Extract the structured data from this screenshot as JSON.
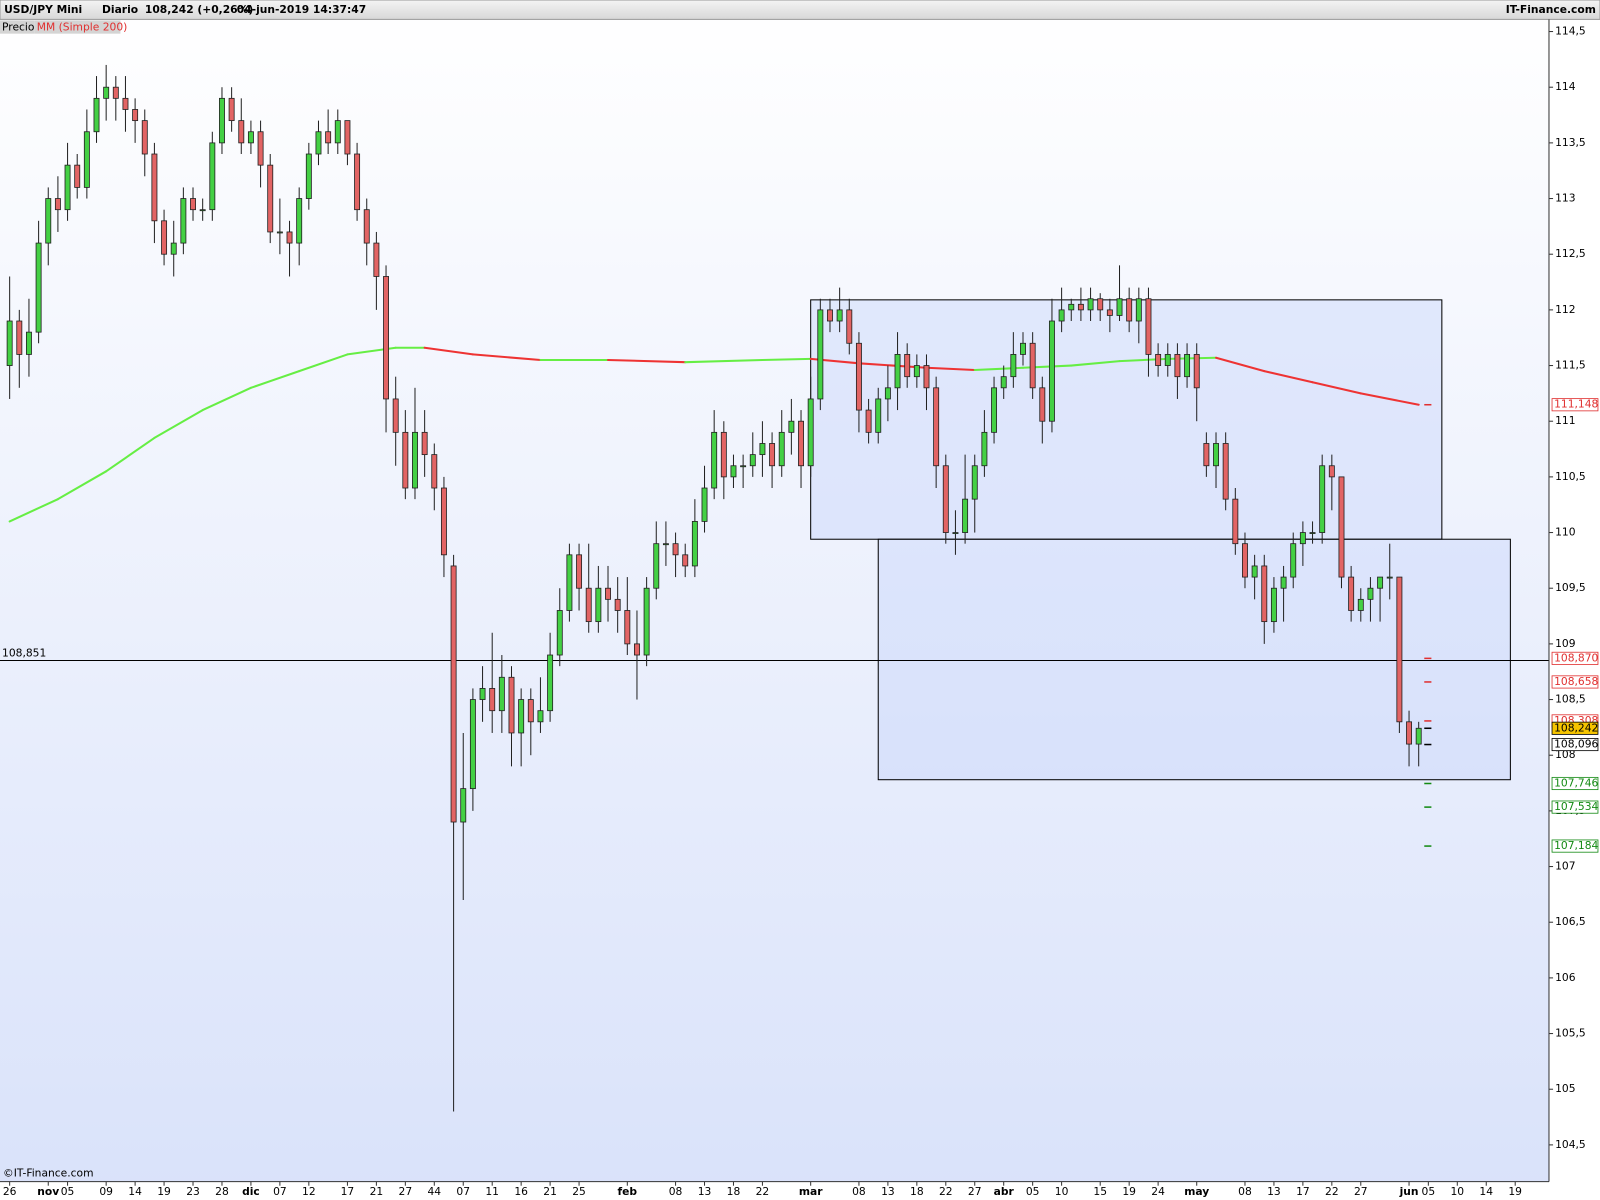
{
  "header": {
    "instrument": "USD/JPY Mini",
    "period": "Diario",
    "last": "108,242 (+0,26%)",
    "datetime": "04-jun-2019 14:37:47",
    "brand": "IT-Finance.com"
  },
  "legend": {
    "price": "Precio",
    "ma": "MM (Simple 200)"
  },
  "footer": "©IT-Finance.com",
  "chart_data": {
    "type": "candlestick",
    "up_color": "#44d044",
    "down_color": "#e26464",
    "ma_up_color": "#66ee44",
    "ma_down_color": "#ee3333",
    "xlim": [
      -1,
      159.5
    ],
    "ylim": [
      104.17,
      114.6
    ],
    "xticks": [
      {
        "value": 0,
        "label": "26"
      },
      {
        "value": 4,
        "label": "nov"
      },
      {
        "value": 6,
        "label": "05"
      },
      {
        "value": 10,
        "label": "09"
      },
      {
        "value": 13,
        "label": "14"
      },
      {
        "value": 16,
        "label": "19"
      },
      {
        "value": 19,
        "label": "23"
      },
      {
        "value": 22,
        "label": "28"
      },
      {
        "value": 25,
        "label": "dic"
      },
      {
        "value": 28,
        "label": "07"
      },
      {
        "value": 31,
        "label": "12"
      },
      {
        "value": 35,
        "label": "17"
      },
      {
        "value": 38,
        "label": "21"
      },
      {
        "value": 41,
        "label": "27"
      },
      44,
      {
        "value": 47,
        "label": "07"
      },
      {
        "value": 50,
        "label": "11"
      },
      {
        "value": 53,
        "label": "16"
      },
      {
        "value": 56,
        "label": "21"
      },
      {
        "value": 59,
        "label": "25"
      },
      {
        "value": 64,
        "label": "feb"
      },
      {
        "value": 69,
        "label": "08"
      },
      {
        "value": 72,
        "label": "13"
      },
      {
        "value": 75,
        "label": "18"
      },
      {
        "value": 78,
        "label": "22"
      },
      {
        "value": 83,
        "label": "mar"
      },
      {
        "value": 88,
        "label": "08"
      },
      {
        "value": 91,
        "label": "13"
      },
      {
        "value": 94,
        "label": "18"
      },
      {
        "value": 97,
        "label": "22"
      },
      {
        "value": 100,
        "label": "27"
      },
      {
        "value": 103,
        "label": "abr"
      },
      {
        "value": 106,
        "label": "05"
      },
      {
        "value": 109,
        "label": "10"
      },
      {
        "value": 113,
        "label": "15"
      },
      {
        "value": 116,
        "label": "19"
      },
      {
        "value": 119,
        "label": "24"
      },
      {
        "value": 123,
        "label": "may"
      },
      {
        "value": 128,
        "label": "08"
      },
      {
        "value": 131,
        "label": "13"
      },
      {
        "value": 134,
        "label": "17"
      },
      {
        "value": 137,
        "label": "22"
      },
      {
        "value": 140,
        "label": "27"
      },
      {
        "value": 145,
        "label": "jun"
      },
      {
        "value": 147,
        "label": "05"
      },
      {
        "value": 150,
        "label": "10"
      },
      {
        "value": 153,
        "label": "14"
      },
      {
        "value": 156,
        "label": "19"
      }
    ],
    "yticks": [
      {
        "value": 104.5,
        "label": "104,5"
      },
      105,
      {
        "value": 105.5,
        "label": "105,5"
      },
      106,
      {
        "value": 106.5,
        "label": "106,5"
      },
      107,
      {
        "value": 107.5,
        "label": "107,5"
      },
      108,
      {
        "value": 108.5,
        "label": "108,5"
      },
      109,
      {
        "value": 109.5,
        "label": "109,5"
      },
      110,
      {
        "value": 110.5,
        "label": "110,5"
      },
      111,
      {
        "value": 111.5,
        "label": "111,5"
      },
      112,
      {
        "value": 112.5,
        "label": "112,5"
      },
      113,
      {
        "value": 113.5,
        "label": "113,5"
      },
      114,
      {
        "value": 114.5,
        "label": "114,5"
      }
    ],
    "ohlc": [
      [
        111.5,
        112.3,
        111.2,
        111.9
      ],
      [
        111.9,
        112.0,
        111.3,
        111.6
      ],
      [
        111.6,
        112.1,
        111.4,
        111.8
      ],
      [
        111.8,
        112.8,
        111.7,
        112.6
      ],
      [
        112.6,
        113.1,
        112.4,
        113.0
      ],
      [
        113.0,
        113.2,
        112.7,
        112.9
      ],
      [
        112.9,
        113.5,
        112.8,
        113.3
      ],
      [
        113.3,
        113.4,
        113.0,
        113.1
      ],
      [
        113.1,
        113.8,
        113.0,
        113.6
      ],
      [
        113.6,
        114.1,
        113.5,
        113.9
      ],
      [
        113.9,
        114.2,
        113.7,
        114.0
      ],
      [
        114.0,
        114.1,
        113.7,
        113.9
      ],
      [
        113.9,
        114.1,
        113.6,
        113.8
      ],
      [
        113.8,
        113.9,
        113.5,
        113.7
      ],
      [
        113.7,
        113.8,
        113.2,
        113.4
      ],
      [
        113.4,
        113.5,
        112.6,
        112.8
      ],
      [
        112.8,
        112.9,
        112.4,
        112.5
      ],
      [
        112.5,
        112.8,
        112.3,
        112.6
      ],
      [
        112.6,
        113.1,
        112.5,
        113.0
      ],
      [
        113.0,
        113.1,
        112.8,
        112.9
      ],
      [
        112.9,
        113.0,
        112.8,
        112.9
      ],
      [
        112.9,
        113.6,
        112.8,
        113.5
      ],
      [
        113.5,
        114.0,
        113.4,
        113.9
      ],
      [
        113.9,
        114.0,
        113.6,
        113.7
      ],
      [
        113.7,
        113.9,
        113.4,
        113.5
      ],
      [
        113.5,
        113.7,
        113.4,
        113.6
      ],
      [
        113.6,
        113.7,
        113.1,
        113.3
      ],
      [
        113.3,
        113.4,
        112.6,
        112.7
      ],
      [
        112.7,
        113.0,
        112.5,
        112.7
      ],
      [
        112.7,
        112.8,
        112.3,
        112.6
      ],
      [
        112.6,
        113.1,
        112.4,
        113.0
      ],
      [
        113.0,
        113.5,
        112.9,
        113.4
      ],
      [
        113.4,
        113.7,
        113.3,
        113.6
      ],
      [
        113.6,
        113.8,
        113.4,
        113.5
      ],
      [
        113.5,
        113.8,
        113.4,
        113.7
      ],
      [
        113.7,
        113.7,
        113.3,
        113.4
      ],
      [
        113.4,
        113.5,
        112.8,
        112.9
      ],
      [
        112.9,
        113.0,
        112.4,
        112.6
      ],
      [
        112.6,
        112.7,
        112.0,
        112.3
      ],
      [
        112.3,
        112.4,
        110.9,
        111.2
      ],
      [
        111.2,
        111.4,
        110.6,
        110.9
      ],
      [
        110.9,
        111.1,
        110.3,
        110.4
      ],
      [
        110.4,
        111.3,
        110.3,
        110.9
      ],
      [
        110.9,
        111.1,
        110.5,
        110.7
      ],
      [
        110.7,
        110.8,
        110.2,
        110.4
      ],
      [
        110.4,
        110.5,
        109.6,
        109.8
      ],
      [
        109.7,
        109.8,
        104.8,
        107.4
      ],
      [
        107.4,
        108.2,
        106.7,
        107.7
      ],
      [
        107.7,
        108.6,
        107.5,
        108.5
      ],
      [
        108.5,
        108.8,
        108.3,
        108.6
      ],
      [
        108.6,
        109.1,
        108.2,
        108.4
      ],
      [
        108.4,
        108.9,
        108.2,
        108.7
      ],
      [
        108.7,
        108.8,
        107.9,
        108.2
      ],
      [
        108.2,
        108.6,
        107.9,
        108.5
      ],
      [
        108.5,
        108.6,
        108.0,
        108.3
      ],
      [
        108.3,
        108.7,
        108.2,
        108.4
      ],
      [
        108.4,
        109.1,
        108.3,
        108.9
      ],
      [
        108.9,
        109.5,
        108.8,
        109.3
      ],
      [
        109.3,
        109.9,
        109.2,
        109.8
      ],
      [
        109.8,
        109.9,
        109.3,
        109.5
      ],
      [
        109.5,
        109.9,
        109.1,
        109.2
      ],
      [
        109.2,
        109.7,
        109.1,
        109.5
      ],
      [
        109.5,
        109.7,
        109.2,
        109.4
      ],
      [
        109.4,
        109.6,
        109.1,
        109.3
      ],
      [
        109.3,
        109.6,
        108.9,
        109.0
      ],
      [
        109.0,
        109.3,
        108.5,
        108.9
      ],
      [
        108.9,
        109.6,
        108.8,
        109.5
      ],
      [
        109.5,
        110.1,
        109.4,
        109.9
      ],
      [
        109.9,
        110.1,
        109.7,
        109.9
      ],
      [
        109.9,
        110.0,
        109.6,
        109.8
      ],
      [
        109.8,
        109.9,
        109.6,
        109.7
      ],
      [
        109.7,
        110.3,
        109.6,
        110.1
      ],
      [
        110.1,
        110.6,
        110.0,
        110.4
      ],
      [
        110.4,
        111.1,
        110.3,
        110.9
      ],
      [
        110.9,
        111.0,
        110.3,
        110.5
      ],
      [
        110.5,
        110.7,
        110.4,
        110.6
      ],
      [
        110.6,
        110.7,
        110.4,
        110.6
      ],
      [
        110.6,
        110.9,
        110.5,
        110.7
      ],
      [
        110.7,
        111.0,
        110.5,
        110.8
      ],
      [
        110.8,
        110.9,
        110.4,
        110.6
      ],
      [
        110.6,
        111.1,
        110.5,
        110.9
      ],
      [
        110.9,
        111.2,
        110.7,
        111.0
      ],
      [
        111.0,
        111.1,
        110.4,
        110.6
      ],
      [
        110.6,
        111.4,
        110.5,
        111.2
      ],
      [
        111.2,
        112.1,
        111.1,
        112.0
      ],
      [
        112.0,
        112.1,
        111.8,
        111.9
      ],
      [
        111.9,
        112.2,
        111.8,
        112.0
      ],
      [
        112.0,
        112.1,
        111.6,
        111.7
      ],
      [
        111.7,
        111.8,
        110.9,
        111.1
      ],
      [
        111.1,
        111.2,
        110.8,
        110.9
      ],
      [
        110.9,
        111.3,
        110.8,
        111.2
      ],
      [
        111.2,
        111.5,
        111.0,
        111.3
      ],
      [
        111.3,
        111.8,
        111.1,
        111.6
      ],
      [
        111.6,
        111.7,
        111.3,
        111.4
      ],
      [
        111.4,
        111.6,
        111.3,
        111.5
      ],
      [
        111.5,
        111.6,
        111.1,
        111.3
      ],
      [
        111.3,
        111.4,
        110.4,
        110.6
      ],
      [
        110.6,
        110.7,
        109.9,
        110.0
      ],
      [
        110.0,
        110.2,
        109.8,
        110.0
      ],
      [
        110.0,
        110.7,
        109.9,
        110.3
      ],
      [
        110.3,
        110.7,
        110.0,
        110.6
      ],
      [
        110.6,
        111.1,
        110.5,
        110.9
      ],
      [
        110.9,
        111.4,
        110.8,
        111.3
      ],
      [
        111.3,
        111.5,
        111.2,
        111.4
      ],
      [
        111.4,
        111.8,
        111.3,
        111.6
      ],
      [
        111.6,
        111.8,
        111.5,
        111.7
      ],
      [
        111.7,
        111.8,
        111.2,
        111.3
      ],
      [
        111.3,
        111.4,
        110.8,
        111.0
      ],
      [
        111.0,
        112.1,
        110.9,
        111.9
      ],
      [
        111.9,
        112.2,
        111.8,
        112.0
      ],
      [
        112.0,
        112.1,
        111.9,
        112.05
      ],
      [
        112.05,
        112.2,
        111.9,
        112.0
      ],
      [
        112.0,
        112.2,
        111.9,
        112.1
      ],
      [
        112.1,
        112.15,
        111.9,
        112.0
      ],
      [
        112.0,
        112.1,
        111.8,
        111.95
      ],
      [
        111.95,
        112.4,
        111.9,
        112.1
      ],
      [
        112.1,
        112.2,
        111.8,
        111.9
      ],
      [
        111.9,
        112.2,
        111.7,
        112.1
      ],
      [
        112.1,
        112.2,
        111.4,
        111.6
      ],
      [
        111.6,
        111.7,
        111.4,
        111.5
      ],
      [
        111.5,
        111.7,
        111.4,
        111.6
      ],
      [
        111.6,
        111.7,
        111.2,
        111.4
      ],
      [
        111.4,
        111.7,
        111.3,
        111.6
      ],
      [
        111.6,
        111.7,
        111.0,
        111.3
      ],
      [
        110.8,
        110.9,
        110.5,
        110.6
      ],
      [
        110.6,
        110.9,
        110.4,
        110.8
      ],
      [
        110.8,
        110.9,
        110.2,
        110.3
      ],
      [
        110.3,
        110.4,
        109.8,
        109.9
      ],
      [
        109.9,
        110.0,
        109.5,
        109.6
      ],
      [
        109.6,
        109.8,
        109.4,
        109.7
      ],
      [
        109.7,
        109.8,
        109.0,
        109.2
      ],
      [
        109.2,
        109.6,
        109.1,
        109.5
      ],
      [
        109.5,
        109.7,
        109.2,
        109.6
      ],
      [
        109.6,
        110.0,
        109.5,
        109.9
      ],
      [
        109.9,
        110.1,
        109.7,
        110.0
      ],
      [
        110.0,
        110.1,
        109.9,
        110.0
      ],
      [
        110.0,
        110.7,
        109.9,
        110.6
      ],
      [
        110.6,
        110.7,
        110.2,
        110.5
      ],
      [
        110.5,
        110.5,
        109.5,
        109.6
      ],
      [
        109.6,
        109.7,
        109.2,
        109.3
      ],
      [
        109.3,
        109.5,
        109.2,
        109.4
      ],
      [
        109.4,
        109.6,
        109.2,
        109.5
      ],
      [
        109.5,
        109.6,
        109.2,
        109.6
      ],
      [
        109.6,
        109.9,
        109.4,
        109.6
      ],
      [
        109.6,
        109.6,
        108.2,
        108.3
      ],
      [
        108.3,
        108.4,
        107.9,
        108.1
      ],
      [
        108.1,
        108.3,
        107.9,
        108.242
      ]
    ],
    "ma": {
      "x": [
        0,
        5,
        10,
        15,
        20,
        25,
        30,
        35,
        40,
        43,
        48,
        55,
        62,
        70,
        78,
        83,
        88,
        95,
        100,
        105,
        110,
        115,
        120,
        125,
        130,
        135,
        140,
        146
      ],
      "values": [
        110.1,
        110.3,
        110.55,
        110.85,
        111.1,
        111.3,
        111.45,
        111.6,
        111.66,
        111.66,
        111.6,
        111.55,
        111.55,
        111.53,
        111.55,
        111.56,
        111.52,
        111.48,
        111.46,
        111.48,
        111.5,
        111.54,
        111.56,
        111.57,
        111.45,
        111.35,
        111.25,
        111.148
      ]
    },
    "boxes": [
      {
        "x": [
          83,
          148.4
        ],
        "y": [
          112.09,
          109.94
        ]
      },
      {
        "x": [
          90,
          155.5
        ],
        "y": [
          109.94,
          107.78
        ]
      }
    ],
    "hline": {
      "value": 108.851,
      "label": "108,851"
    },
    "levels": [
      {
        "value": 111.148,
        "label": "111,148",
        "color": "#e03030"
      },
      {
        "value": 108.87,
        "label": "108,870",
        "color": "#e03030"
      },
      {
        "value": 108.658,
        "label": "108,658",
        "color": "#e03030"
      },
      {
        "value": 108.308,
        "label": "108,308",
        "color": "#e03030"
      },
      {
        "value": 108.242,
        "label": "108,242",
        "color": "#000000",
        "background": "#f5c400"
      },
      {
        "value": 108.096,
        "label": "108,096",
        "color": "#000000"
      },
      {
        "value": 107.746,
        "label": "107,746",
        "color": "#138a13"
      },
      {
        "value": 107.534,
        "label": "107,534",
        "color": "#138a13"
      },
      {
        "value": 107.184,
        "label": "107,184",
        "color": "#138a13"
      }
    ]
  }
}
